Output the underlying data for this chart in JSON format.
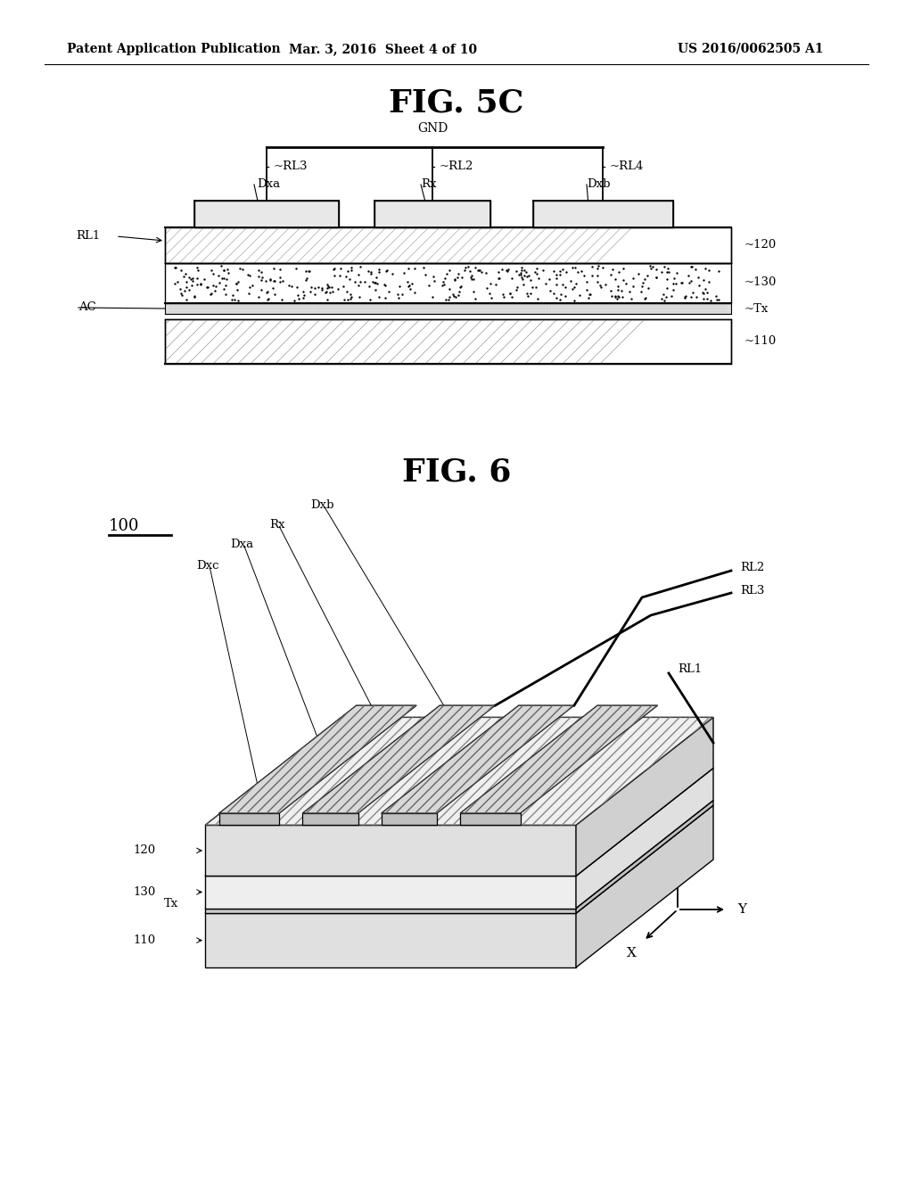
{
  "background_color": "#ffffff",
  "header_left": "Patent Application Publication",
  "header_center": "Mar. 3, 2016  Sheet 4 of 10",
  "header_right": "US 2016/0062505 A1",
  "fig5c_title": "FIG. 5C",
  "fig6_title": "FIG. 6",
  "page_width": 10.24,
  "page_height": 13.2,
  "dpi": 100
}
